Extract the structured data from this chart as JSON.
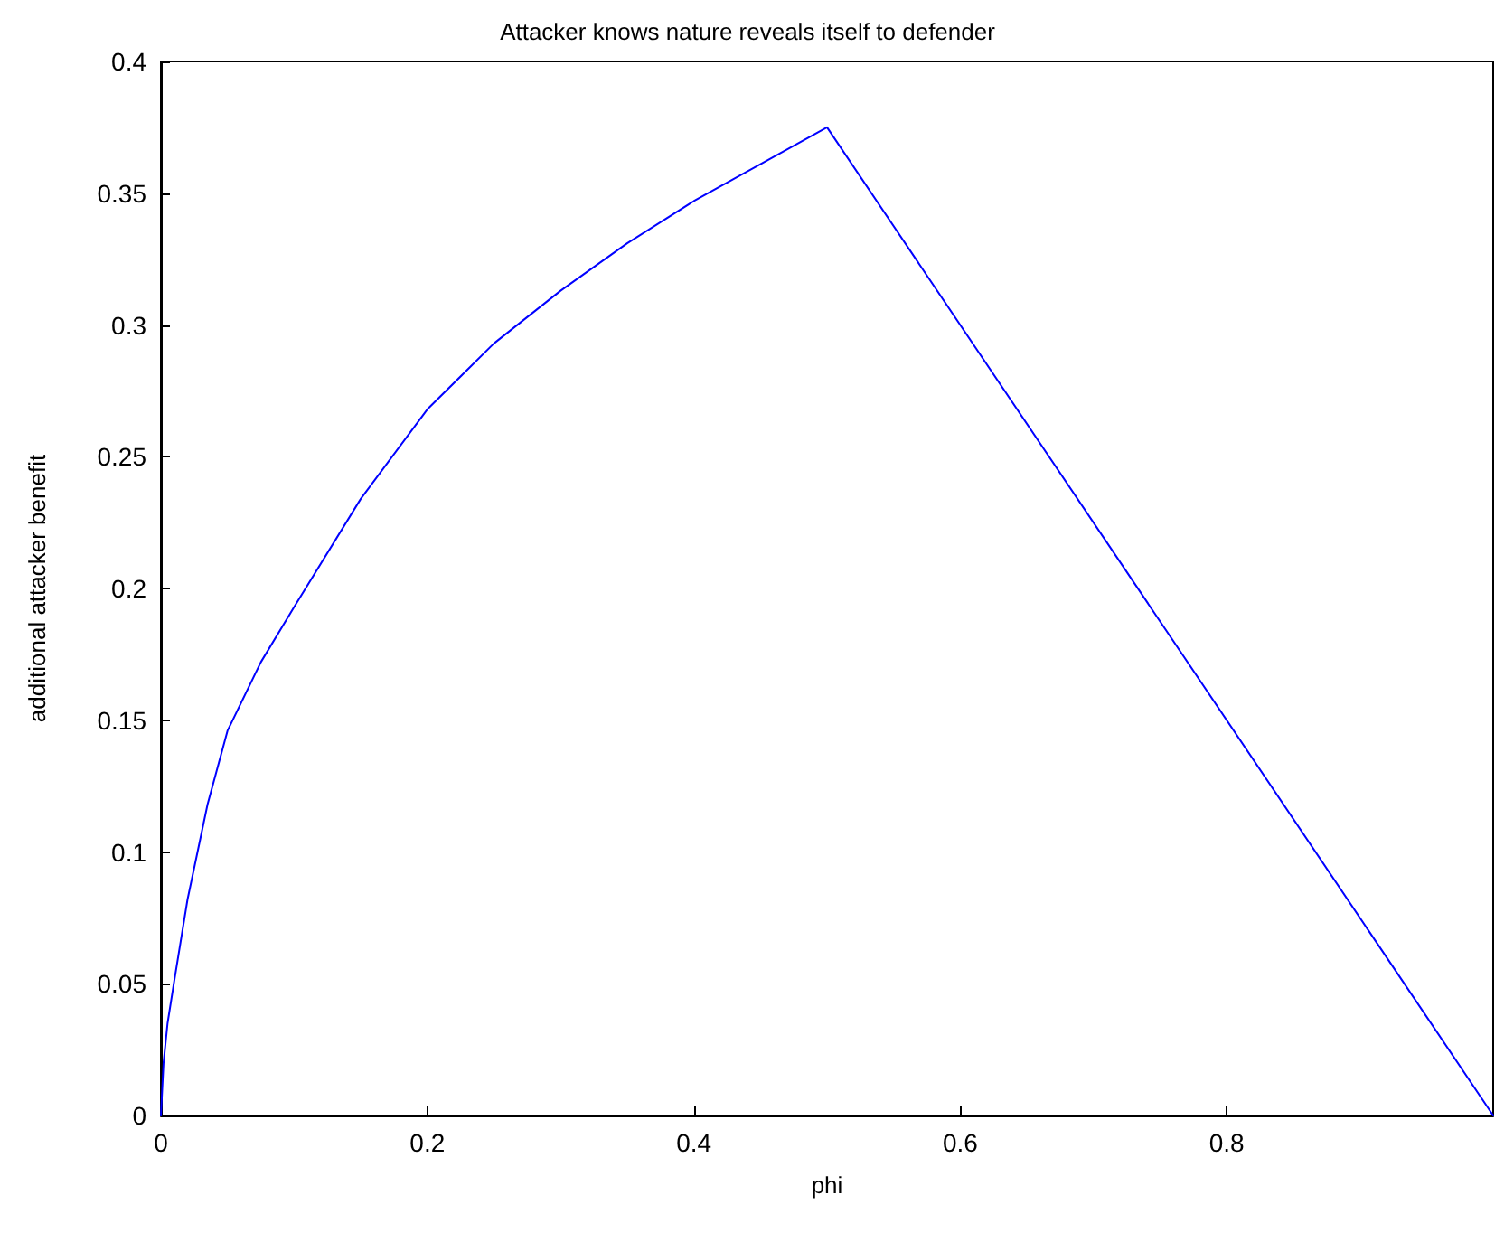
{
  "chart_data": {
    "type": "line",
    "title": "Attacker knows nature reveals itself to defender",
    "xlabel": "phi",
    "ylabel": "additional attacker benefit",
    "x": [
      0,
      0.002,
      0.005,
      0.01,
      0.02,
      0.035,
      0.05,
      0.075,
      0.1,
      0.15,
      0.2,
      0.25,
      0.3,
      0.35,
      0.4,
      0.45,
      0.5,
      1
    ],
    "series": [
      {
        "color": "#0000ff",
        "values": [
          0,
          0.02,
          0.035,
          0.051,
          0.082,
          0.118,
          0.146,
          0.172,
          0.193,
          0.234,
          0.268,
          0.293,
          0.313,
          0.331,
          0.347,
          0.361,
          0.375,
          0
        ]
      }
    ],
    "xlim": [
      0,
      1
    ],
    "xticks": [
      0,
      0.2,
      0.4,
      0.6,
      0.8
    ],
    "ylim": [
      0,
      0.4
    ],
    "yticks": [
      0,
      0.05,
      0.1,
      0.15,
      0.2,
      0.25,
      0.3,
      0.35,
      0.4
    ],
    "grid": false,
    "marker": "none",
    "line_style": "solid"
  }
}
